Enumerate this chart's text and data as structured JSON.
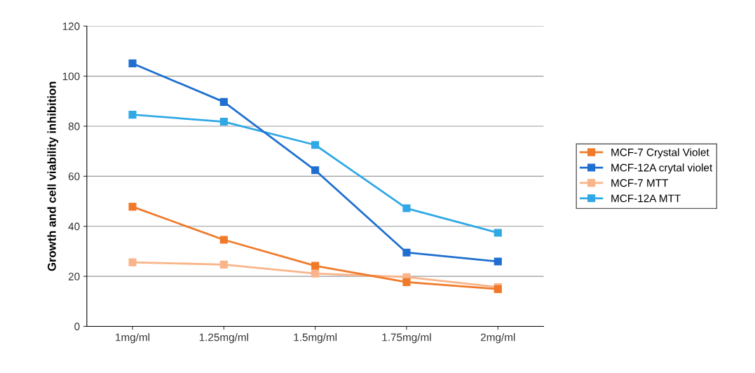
{
  "chart_data": {
    "type": "line",
    "ylabel": "Growth and cell viability inhibition",
    "categories": [
      "1mg/ml",
      "1.25mg/ml",
      "1.5mg/ml",
      "1.75mg/ml",
      "2mg/ml"
    ],
    "series": [
      {
        "name": "MCF-7 Crystal Violet",
        "color": "#f07a2a",
        "values": [
          47.8,
          34.6,
          24.2,
          17.7,
          14.9
        ]
      },
      {
        "name": "MCF-12A crytal violet",
        "color": "#1f6fd0",
        "values": [
          105.1,
          89.7,
          62.4,
          29.5,
          25.9
        ]
      },
      {
        "name": "MCF-7 MTT",
        "color": "#f9b48a",
        "values": [
          25.6,
          24.7,
          21.1,
          19.7,
          15.7
        ]
      },
      {
        "name": "MCF-12A MTT",
        "color": "#30a8e6",
        "values": [
          84.6,
          81.8,
          72.5,
          47.2,
          37.4
        ]
      }
    ],
    "ylim": [
      0,
      120
    ],
    "yticks": [
      0,
      20,
      40,
      60,
      80,
      100,
      120
    ],
    "grid": "y",
    "legend": "right",
    "marker": "square",
    "line_style": "solid"
  }
}
